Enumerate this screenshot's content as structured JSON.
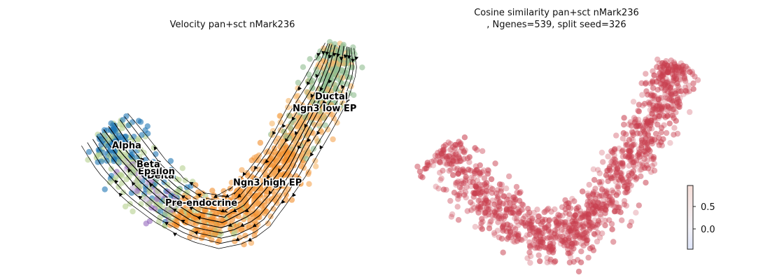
{
  "chart_data": [
    {
      "type": "scatter",
      "title": "Velocity pan+sct nMark236",
      "description_kind": "UMAP embedding with velocity streamlines",
      "axes_visible": false,
      "clusters": [
        {
          "name": "Ductal",
          "color": "#8fbc8f"
        },
        {
          "name": "Ngn3 low EP",
          "color": "#f7b76b"
        },
        {
          "name": "Ngn3 high EP",
          "color": "#f5a552"
        },
        {
          "name": "Pre-endocrine",
          "color": "#f28e2b"
        },
        {
          "name": "Beta",
          "color": "#b5d18f"
        },
        {
          "name": "Alpha",
          "color": "#1f77b4"
        },
        {
          "name": "Delta",
          "color": "#c5b0d5"
        },
        {
          "name": "Epsilon",
          "color": "#9467bd"
        }
      ],
      "streamline_color": "#000000"
    },
    {
      "type": "scatter",
      "title": "Cosine similarity pan+sct nMark236\n, Ngenes=539, split seed=326",
      "axes_visible": false,
      "point_color": "#c83f4f",
      "colorbar": {
        "ticks": [
          "0.5",
          "0.0"
        ],
        "low_color": "#dfe6fb",
        "high_color": "#f7ded8"
      }
    }
  ]
}
